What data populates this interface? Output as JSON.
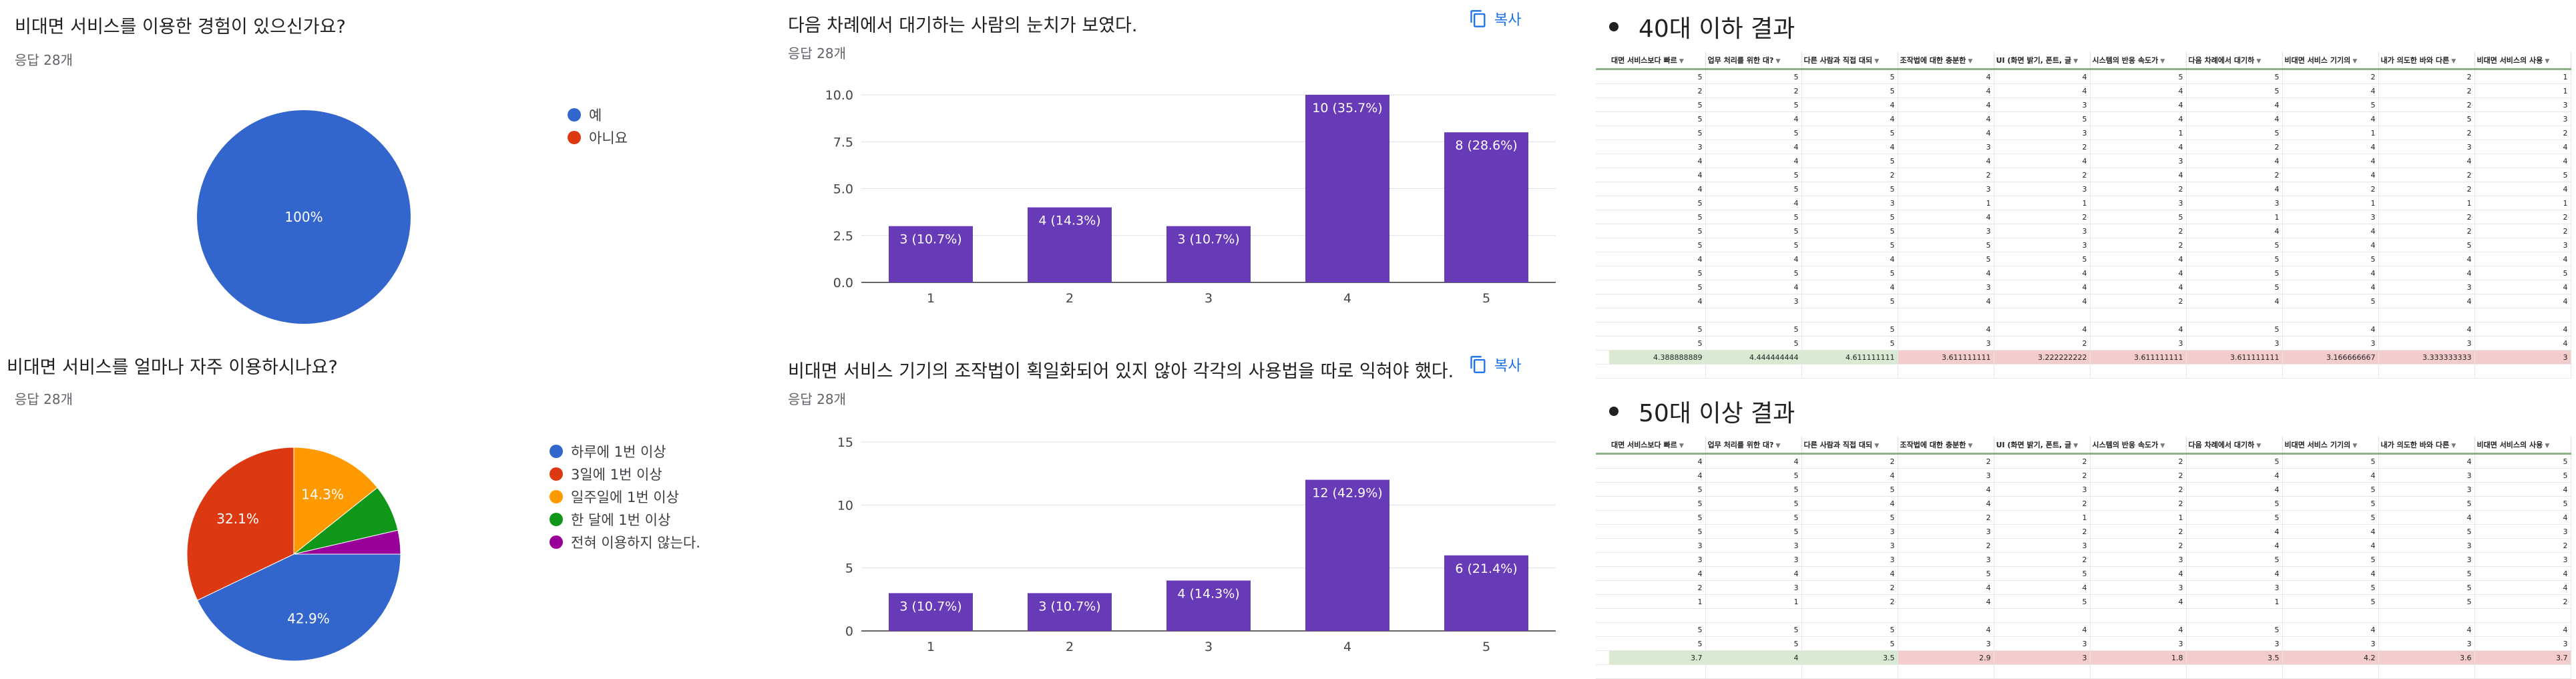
{
  "pie1": {
    "title": "비대면 서비스를 이용한 경험이 있으신가요?",
    "count": "응답 28개",
    "chart_data": {
      "type": "pie",
      "labels": [
        "예",
        "아니요"
      ],
      "values": [
        100,
        0
      ],
      "colors": [
        "#3366cc",
        "#dc3912"
      ],
      "data_labels": [
        "100%",
        ""
      ]
    }
  },
  "pie2": {
    "title": "비대면 서비스를 얼마나 자주 이용하시나요?",
    "count": "응답 28개",
    "chart_data": {
      "type": "pie",
      "labels": [
        "하루에 1번 이상",
        "3일에 1번 이상",
        "일주일에 1번 이상",
        "한 달에 1번 이상",
        "전혀 이용하지 않는다."
      ],
      "values": [
        42.9,
        32.1,
        14.3,
        7.1,
        3.6
      ],
      "colors": [
        "#3366cc",
        "#dc3912",
        "#ff9900",
        "#109618",
        "#990099"
      ],
      "data_labels": [
        "42.9%",
        "32.1%",
        "14.3%",
        "",
        ""
      ]
    }
  },
  "bar1": {
    "title": "다음 차례에서 대기하는 사람의 눈치가 보였다.",
    "count": "응답 28개",
    "copy_label": "복사",
    "chart_data": {
      "type": "bar",
      "categories": [
        "1",
        "2",
        "3",
        "4",
        "5"
      ],
      "values": [
        3,
        4,
        3,
        10,
        8
      ],
      "data_labels": [
        "3 (10.7%)",
        "4 (14.3%)",
        "3 (10.7%)",
        "10 (35.7%)",
        "8 (28.6%)"
      ],
      "yticks": [
        "0.0",
        "2.5",
        "5.0",
        "7.5",
        "10.0"
      ],
      "ylim": [
        0,
        10
      ],
      "color": "#673ab7"
    }
  },
  "bar2": {
    "title": "비대면 서비스 기기의 조작법이 획일화되어 있지 않아 각각의 사용법을 따로 익혀야 했다.",
    "count": "응답 28개",
    "copy_label": "복사",
    "chart_data": {
      "type": "bar",
      "categories": [
        "1",
        "2",
        "3",
        "4",
        "5"
      ],
      "values": [
        3,
        3,
        4,
        12,
        6
      ],
      "data_labels": [
        "3 (10.7%)",
        "3 (10.7%)",
        "4 (14.3%)",
        "12 (42.9%)",
        "6 (21.4%)"
      ],
      "yticks": [
        "0",
        "5",
        "10",
        "15"
      ],
      "ylim": [
        0,
        15
      ],
      "color": "#673ab7"
    }
  },
  "headers": [
    "대면 서비스보다 빠르",
    "업무 처리를 위한 대?",
    "다른 사람과 직접 대되",
    "조작법에 대한 충분한",
    "UI (화면 밝기, 폰트, 글",
    "시스템의 반응 속도가",
    "다음 차례에서 대기하",
    "비대면 서비스 기기의",
    "내가 의도한 바와 다른",
    "비대면 서비스의 사용"
  ],
  "table40": {
    "section_title": "40대 이하 결과",
    "rows": [
      [
        "5",
        "5",
        "5",
        "4",
        "4",
        "5",
        "5",
        "2",
        "2",
        "1"
      ],
      [
        "2",
        "2",
        "5",
        "4",
        "4",
        "4",
        "5",
        "4",
        "2",
        "1"
      ],
      [
        "5",
        "5",
        "4",
        "4",
        "3",
        "4",
        "4",
        "5",
        "2",
        "3"
      ],
      [
        "5",
        "4",
        "4",
        "4",
        "5",
        "4",
        "4",
        "4",
        "5",
        "3"
      ],
      [
        "5",
        "5",
        "5",
        "4",
        "3",
        "1",
        "5",
        "1",
        "2",
        "2"
      ],
      [
        "3",
        "4",
        "4",
        "3",
        "2",
        "4",
        "2",
        "4",
        "3",
        "4"
      ],
      [
        "4",
        "4",
        "5",
        "4",
        "4",
        "3",
        "4",
        "4",
        "4",
        "4"
      ],
      [
        "4",
        "5",
        "2",
        "2",
        "2",
        "4",
        "2",
        "4",
        "2",
        "5"
      ],
      [
        "4",
        "5",
        "5",
        "3",
        "3",
        "2",
        "4",
        "2",
        "2",
        "4"
      ],
      [
        "5",
        "4",
        "3",
        "1",
        "1",
        "3",
        "3",
        "1",
        "1",
        "1"
      ],
      [
        "5",
        "5",
        "5",
        "4",
        "2",
        "5",
        "1",
        "3",
        "2",
        "2"
      ],
      [
        "5",
        "5",
        "5",
        "3",
        "3",
        "2",
        "4",
        "4",
        "2",
        "2"
      ],
      [
        "5",
        "5",
        "5",
        "5",
        "3",
        "2",
        "5",
        "4",
        "5",
        "3"
      ],
      [
        "4",
        "4",
        "4",
        "5",
        "5",
        "4",
        "5",
        "5",
        "4",
        "4"
      ],
      [
        "5",
        "5",
        "5",
        "4",
        "4",
        "4",
        "5",
        "4",
        "4",
        "5"
      ],
      [
        "5",
        "4",
        "4",
        "3",
        "4",
        "4",
        "5",
        "4",
        "3",
        "4"
      ],
      [
        "4",
        "3",
        "5",
        "4",
        "4",
        "2",
        "4",
        "5",
        "4",
        "4"
      ],
      [
        "",
        "",
        "",
        "",
        "",
        "",
        "",
        "",
        "",
        ""
      ],
      [
        "5",
        "5",
        "5",
        "4",
        "4",
        "4",
        "5",
        "4",
        "4",
        "4"
      ],
      [
        "5",
        "5",
        "5",
        "3",
        "2",
        "3",
        "3",
        "3",
        "3",
        "4"
      ]
    ],
    "average": [
      "4.388888889",
      "4.444444444",
      "4.611111111",
      "3.611111111",
      "3.222222222",
      "3.611111111",
      "3.611111111",
      "3.166666667",
      "3.333333333",
      "3"
    ]
  },
  "table50": {
    "section_title": "50대 이상 결과",
    "rows": [
      [
        "4",
        "4",
        "2",
        "2",
        "2",
        "2",
        "5",
        "5",
        "4",
        "5"
      ],
      [
        "4",
        "5",
        "4",
        "3",
        "2",
        "2",
        "4",
        "4",
        "3",
        "5"
      ],
      [
        "5",
        "5",
        "5",
        "4",
        "3",
        "2",
        "4",
        "5",
        "3",
        "4"
      ],
      [
        "5",
        "5",
        "4",
        "4",
        "2",
        "2",
        "5",
        "5",
        "5",
        "5"
      ],
      [
        "5",
        "5",
        "5",
        "2",
        "1",
        "1",
        "5",
        "5",
        "4",
        "4"
      ],
      [
        "5",
        "5",
        "3",
        "3",
        "2",
        "2",
        "4",
        "4",
        "5",
        "3"
      ],
      [
        "3",
        "3",
        "3",
        "2",
        "3",
        "2",
        "4",
        "4",
        "3",
        "2"
      ],
      [
        "3",
        "3",
        "3",
        "3",
        "2",
        "3",
        "5",
        "5",
        "3",
        "3"
      ],
      [
        "4",
        "4",
        "4",
        "5",
        "5",
        "4",
        "4",
        "4",
        "5",
        "4"
      ],
      [
        "2",
        "3",
        "2",
        "4",
        "4",
        "3",
        "3",
        "5",
        "5",
        "4"
      ],
      [
        "1",
        "1",
        "2",
        "4",
        "5",
        "4",
        "1",
        "5",
        "5",
        "2"
      ],
      [
        "",
        "",
        "",
        "",
        "",
        "",
        "",
        "",
        "",
        ""
      ],
      [
        "5",
        "5",
        "5",
        "4",
        "4",
        "4",
        "5",
        "4",
        "4",
        "4"
      ],
      [
        "5",
        "5",
        "5",
        "3",
        "3",
        "3",
        "3",
        "3",
        "3",
        "3"
      ]
    ],
    "average": [
      "3.7",
      "4",
      "3.5",
      "2.9",
      "3",
      "1.8",
      "3.5",
      "4.2",
      "3.6",
      "3.7"
    ]
  }
}
